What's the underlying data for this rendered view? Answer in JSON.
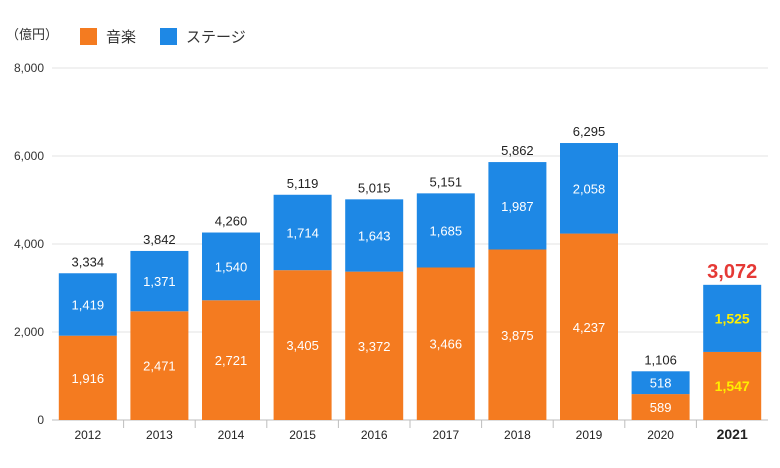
{
  "unit_label": "（億円）",
  "legend": [
    {
      "label": "音楽",
      "color": "#f47b20"
    },
    {
      "label": "ステージ",
      "color": "#1e88e5"
    }
  ],
  "chart_data": {
    "type": "bar",
    "stacked": true,
    "categories": [
      "2012",
      "2013",
      "2014",
      "2015",
      "2016",
      "2017",
      "2018",
      "2019",
      "2020",
      "2021"
    ],
    "series": [
      {
        "name": "音楽",
        "color": "#f47b20",
        "values": [
          1916,
          2471,
          2721,
          3405,
          3372,
          3466,
          3875,
          4237,
          589,
          1547
        ],
        "labels": [
          "1,916",
          "2,471",
          "2,721",
          "3,405",
          "3,372",
          "3,466",
          "3,875",
          "4,237",
          "589",
          "1,547"
        ]
      },
      {
        "name": "ステージ",
        "color": "#1e88e5",
        "values": [
          1419,
          1371,
          1540,
          1714,
          1643,
          1685,
          1987,
          2058,
          518,
          1525
        ],
        "labels": [
          "1,419",
          "1,371",
          "1,540",
          "1,714",
          "1,643",
          "1,685",
          "1,987",
          "2,058",
          "518",
          "1,525"
        ]
      }
    ],
    "totals": [
      3334,
      3842,
      4260,
      5119,
      5015,
      5151,
      5862,
      6295,
      1106,
      3072
    ],
    "total_labels": [
      "3,334",
      "3,842",
      "4,260",
      "5,119",
      "5,015",
      "5,151",
      "5,862",
      "6,295",
      "1,106",
      "3,072"
    ],
    "y_ticks": [
      0,
      2000,
      4000,
      6000,
      8000
    ],
    "y_tick_labels": [
      "0",
      "2,000",
      "4,000",
      "6,000",
      "8,000"
    ],
    "ylim": [
      0,
      8000
    ],
    "highlight_category": "2021",
    "highlight_total_color": "#e53935",
    "highlight_value_color": "#ffee00",
    "grid": true,
    "legend_position": "top-left"
  }
}
